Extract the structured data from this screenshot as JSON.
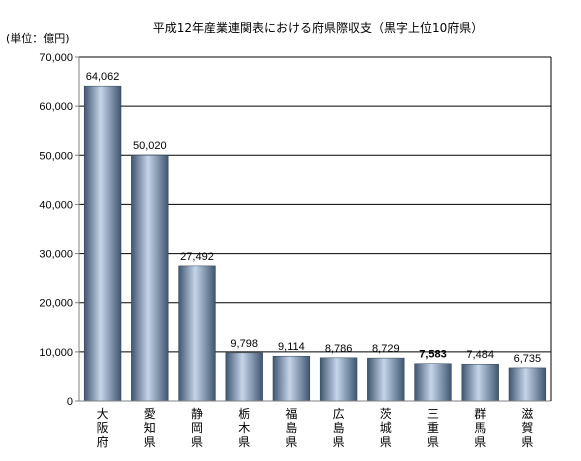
{
  "chart_data": {
    "type": "bar",
    "title": "平成12年産業連関表における府県際収支（黒字上位10府県）",
    "unit_label": "(単位：億円)",
    "categories": [
      "大阪府",
      "愛知県",
      "静岡県",
      "栃木県",
      "福島県",
      "広島県",
      "茨城県",
      "三重県",
      "群馬県",
      "滋賀県"
    ],
    "values": [
      64062,
      50020,
      27492,
      9798,
      9114,
      8786,
      8729,
      7583,
      7484,
      6735
    ],
    "value_labels": [
      "64,062",
      "50,020",
      "27,492",
      "9,798",
      "9,114",
      "8,786",
      "8,729",
      "7,583",
      "7,484",
      "6,735"
    ],
    "bold_label_index": 7,
    "ylim": [
      0,
      70000
    ],
    "yticks": [
      0,
      10000,
      20000,
      30000,
      40000,
      50000,
      60000,
      70000
    ],
    "ytick_labels": [
      "0",
      "10,000",
      "20,000",
      "30,000",
      "40,000",
      "50,000",
      "60,000",
      "70,000"
    ],
    "grid": true,
    "colors": {
      "bar_dark": "#3f5670",
      "bar_mid": "#8fa8c8",
      "bar_light": "#c5d5ea",
      "grid": "#000000",
      "axis": "#808080"
    }
  }
}
